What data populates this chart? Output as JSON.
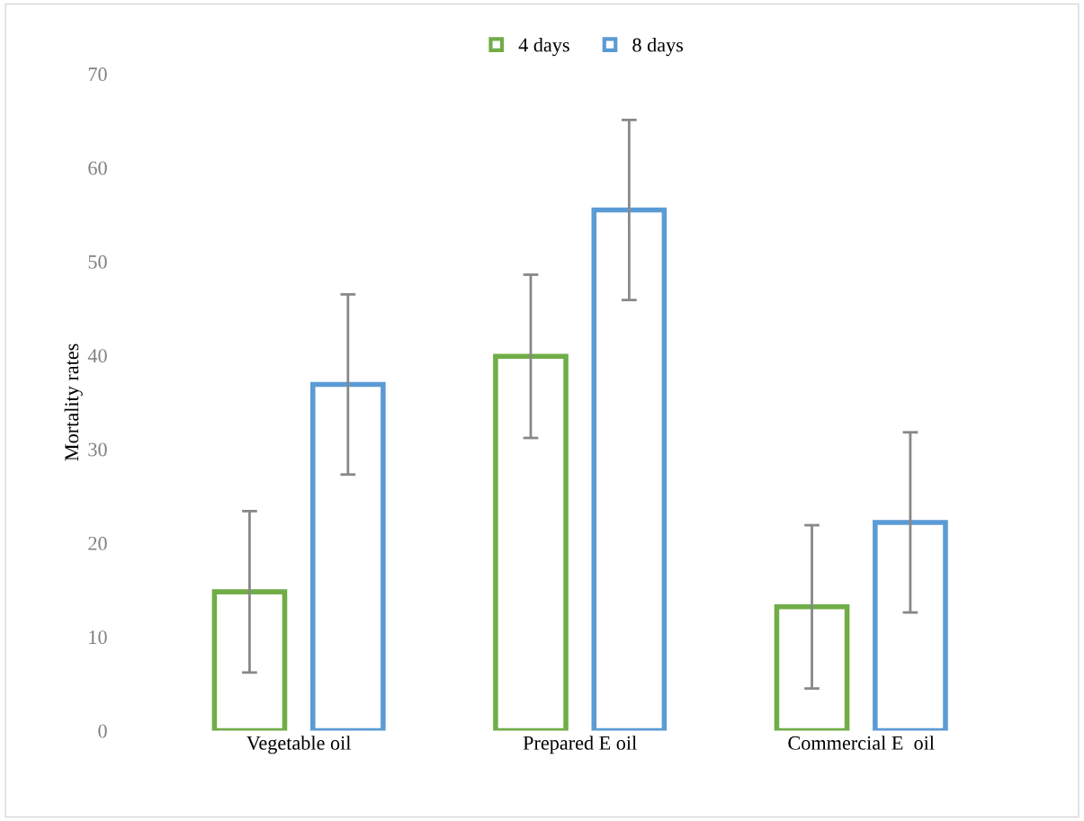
{
  "chart_data": {
    "type": "bar",
    "ylabel": "Mortality rates",
    "categories": [
      "Vegetable oil",
      "Prepared E oil",
      "Commercial E  oil"
    ],
    "series": [
      {
        "name": "4 days",
        "color": "#70ad47",
        "values": [
          14.8,
          39.9,
          13.2
        ],
        "errors": [
          8.6,
          8.7,
          8.7
        ]
      },
      {
        "name": "8 days",
        "color": "#5b9bd5",
        "values": [
          36.9,
          55.5,
          22.2
        ],
        "errors": [
          9.6,
          9.6,
          9.6
        ]
      }
    ],
    "ylim": [
      0,
      70
    ],
    "yticks": [
      0,
      10,
      20,
      30,
      40,
      50,
      60,
      70
    ],
    "grid": false,
    "legend": "top"
  }
}
